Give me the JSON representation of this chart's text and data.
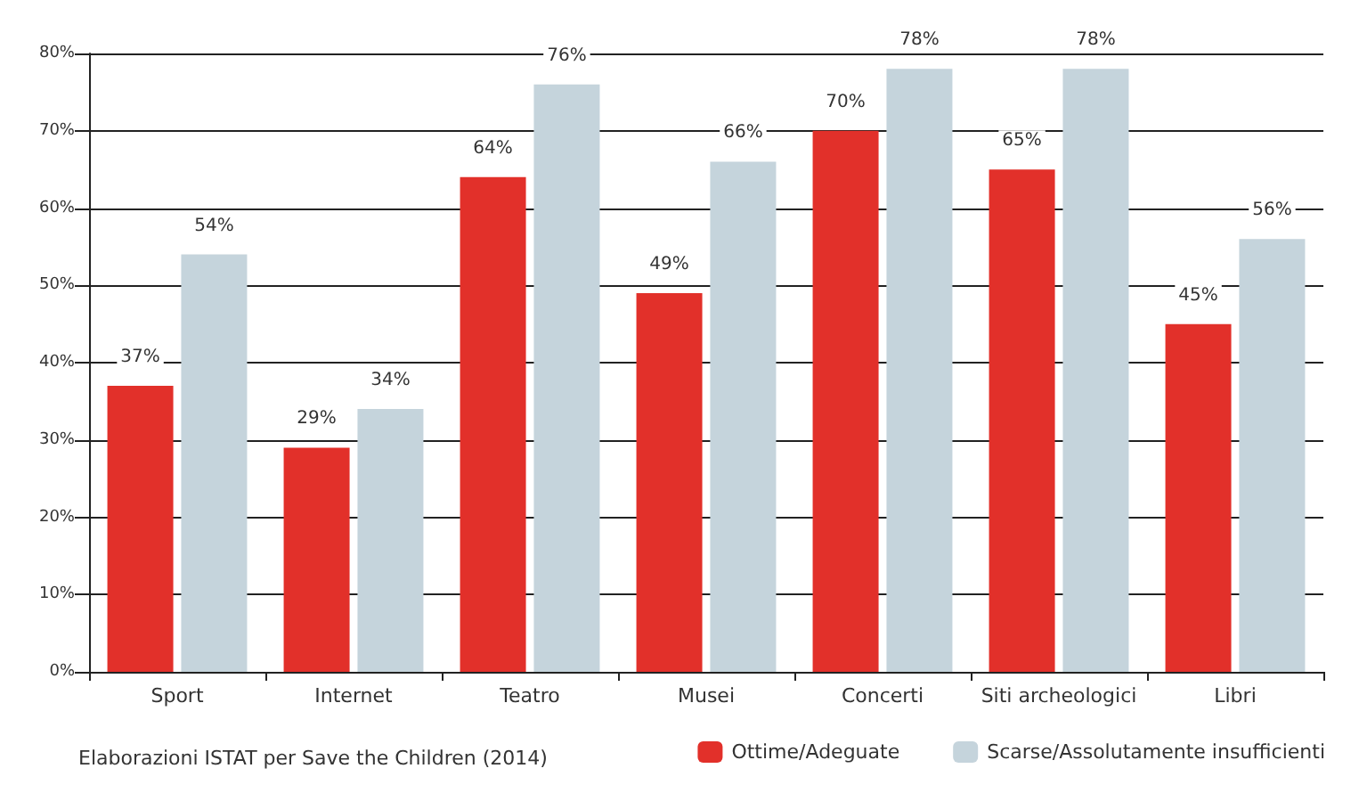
{
  "chart_data": {
    "type": "bar",
    "categories": [
      "Sport",
      "Internet",
      "Teatro",
      "Musei",
      "Concerti",
      "Siti archeologici",
      "Libri"
    ],
    "series": [
      {
        "name": "Ottime/Adeguate",
        "color": "#e2302a",
        "values": [
          37,
          29,
          64,
          49,
          70,
          65,
          45
        ],
        "value_labels": [
          "37%",
          "29%",
          "64%",
          "49%",
          "70%",
          "65%",
          "45%"
        ]
      },
      {
        "name": "Scarse/Assolutamente insufficienti",
        "color": "#c5d4dc",
        "values": [
          54,
          34,
          76,
          66,
          78,
          78,
          56
        ],
        "value_labels": [
          "54%",
          "34%",
          "76%",
          "66%",
          "78%",
          "78%",
          "56%"
        ]
      }
    ],
    "ylim": [
      0,
      80
    ],
    "yticks": [
      {
        "value": 0,
        "label": "0%"
      },
      {
        "value": 10,
        "label": "10%"
      },
      {
        "value": 20,
        "label": "20%"
      },
      {
        "value": 30,
        "label": "30%"
      },
      {
        "value": 40,
        "label": "40%"
      },
      {
        "value": 50,
        "label": "50%"
      },
      {
        "value": 60,
        "label": "60%"
      },
      {
        "value": 70,
        "label": "70%"
      },
      {
        "value": 80,
        "label": "80%"
      }
    ],
    "grid": "y",
    "legend": "bottom right",
    "annotations": [
      "Elaborazioni ISTAT per Save the Children (2014)"
    ]
  }
}
